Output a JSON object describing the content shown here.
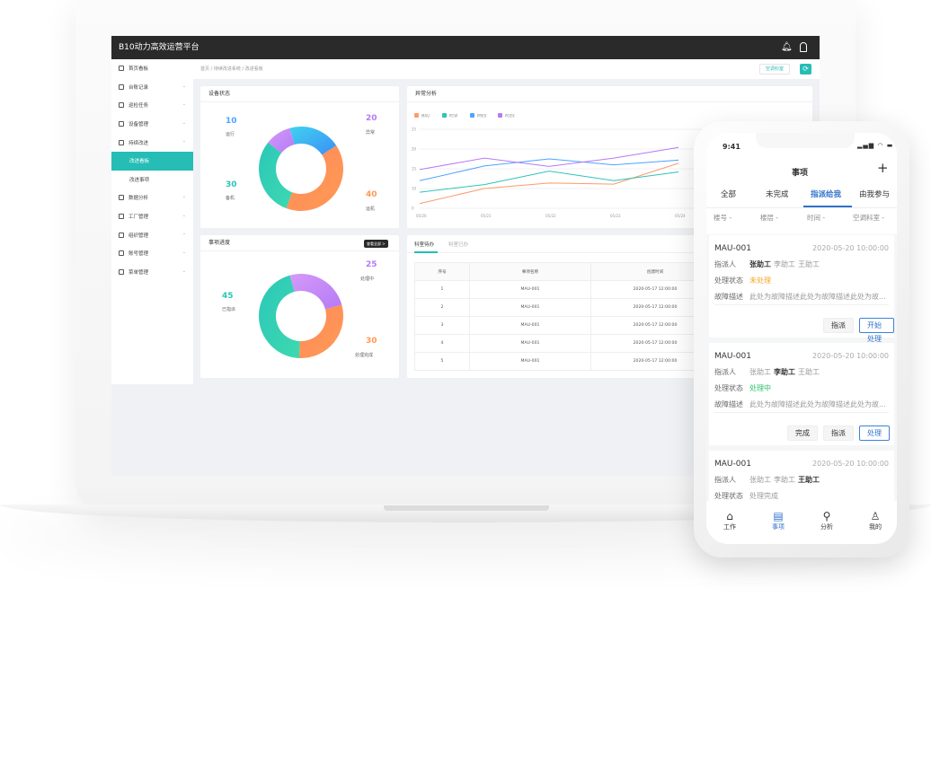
{
  "app": {
    "title": "B10动力高效运营平台",
    "icons": [
      "bell-icon",
      "user-icon"
    ]
  },
  "sidebar": {
    "items": [
      {
        "label": "首页看板",
        "icon": "home-icon",
        "chev": false
      },
      {
        "label": "台账记录",
        "icon": "ledger-icon",
        "chev": true
      },
      {
        "label": "巡检任务",
        "icon": "inspect-icon",
        "chev": true
      },
      {
        "label": "设备管理",
        "icon": "device-icon",
        "chev": true
      },
      {
        "label": "持续改进",
        "icon": "improve-icon",
        "chev": true
      },
      {
        "label": "改进看板",
        "sub": true,
        "active": true
      },
      {
        "label": "改进事项",
        "sub": true
      },
      {
        "label": "数据分析",
        "icon": "chart-icon",
        "chev": true
      },
      {
        "label": "工厂管理",
        "icon": "factory-icon",
        "chev": true
      },
      {
        "label": "组织管理",
        "icon": "org-icon",
        "chev": true
      },
      {
        "label": "账号管理",
        "icon": "account-icon",
        "chev": true
      },
      {
        "label": "菜单管理",
        "icon": "menu-icon",
        "chev": true
      }
    ]
  },
  "breadcrumb": "首页 / 持续改进系统 / 改进看板",
  "header": {
    "dept_button": "空调科室",
    "refresh_icon": "refresh-icon"
  },
  "device_status": {
    "title": "设备状态",
    "segments": [
      {
        "label": "异常",
        "value": 20,
        "color": "#3b8ff5",
        "color2": "#3fd2f0"
      },
      {
        "label": "运行",
        "value": 40,
        "color": "#ff9a55",
        "color2": "#ff8a5a"
      },
      {
        "label": "备机",
        "value": 30,
        "color": "#3dd9b0",
        "color2": "#2cc7b8"
      },
      {
        "label": "运行",
        "value": 10,
        "color": "#b57af5",
        "color2": "#d49af8"
      }
    ],
    "labels": {
      "run_value": "10",
      "run_label": "运行",
      "abn_value": "20",
      "abn_label": "异常",
      "standby_value": "30",
      "standby_label": "备机",
      "on_value": "40",
      "on_label": "运机"
    }
  },
  "progress": {
    "title": "事项进度",
    "view_all": "查看全部 >",
    "segments": [
      {
        "value": 25,
        "color": "#b57af5",
        "color2": "#d49af8"
      },
      {
        "value": 30,
        "color": "#ff9a55",
        "color2": "#ff8a5a"
      },
      {
        "value": 45,
        "color": "#3dd9b0",
        "color2": "#2cc7b8"
      }
    ],
    "labels": {
      "doing_value": "25",
      "doing_label": "处理中",
      "done_value": "30",
      "done_label": "处理完成",
      "assigned_value": "45",
      "assigned_label": "已指派"
    }
  },
  "chart_data": {
    "type": "line",
    "title": "异常分析",
    "x": [
      "05/20",
      "05/21",
      "05/22",
      "05/23",
      "05/24"
    ],
    "yticks": [
      0,
      10,
      15,
      20,
      25
    ],
    "ylim": [
      0,
      25
    ],
    "grid": true,
    "legend": "top-left",
    "series": [
      {
        "name": "MAU",
        "color": "#ff9a6a",
        "values": [
          2.4,
          10,
          11.4,
          11.1,
          16.4
        ]
      },
      {
        "name": "PCW",
        "color": "#2ec4b6",
        "values": [
          8.1,
          11,
          14.4,
          12,
          14.2
        ]
      },
      {
        "name": "PREX",
        "color": "#4da3ff",
        "values": [
          12,
          15.7,
          17.5,
          16,
          17.2
        ]
      },
      {
        "name": "PGEX",
        "color": "#b57af5",
        "values": [
          14.8,
          17.7,
          15.6,
          17.7,
          20.4
        ]
      }
    ]
  },
  "todo": {
    "tabs": [
      "科室待办",
      "科室已办"
    ],
    "columns": [
      "序号",
      "事项名称",
      "创建时间"
    ],
    "rows": [
      [
        "1",
        "MAU-001",
        "2020-05-17 12:00:00"
      ],
      [
        "2",
        "MAU-001",
        "2020-05-17 12:00:00"
      ],
      [
        "3",
        "MAU-001",
        "2020-05-17 12:00:00"
      ],
      [
        "4",
        "MAU-001",
        "2020-05-17 12:00:00"
      ],
      [
        "5",
        "MAU-001",
        "2020-05-17 12:00:00"
      ]
    ]
  },
  "phone": {
    "time": "9:41",
    "title": "事项",
    "add": "+",
    "tabs": [
      "全部",
      "未完成",
      "指派给我",
      "由我参与"
    ],
    "active_tab": 2,
    "filters": [
      "楼号 -",
      "楼层 -",
      "时间 -",
      "空调科室 -"
    ],
    "cards": [
      {
        "id": "MAU-001",
        "time": "2020-05-20 10:00:00",
        "assign_label": "指派人",
        "people": [
          "张助工",
          "李助工",
          "王助工"
        ],
        "bold": 0,
        "status_label": "处理状态",
        "status": "未处理",
        "status_color": "#f5a623",
        "desc_label": "故障描述",
        "desc": "此处为故障描述此处为故障描述此处为故...",
        "buttons": [
          "指派",
          "开始处理"
        ]
      },
      {
        "id": "MAU-001",
        "time": "2020-05-20 10:00:00",
        "assign_label": "指派人",
        "people": [
          "张助工",
          "李助工",
          "王助工"
        ],
        "bold": 1,
        "status_label": "处理状态",
        "status": "处理中",
        "status_color": "#2cbf6a",
        "desc_label": "故障描述",
        "desc": "此处为故障描述此处为故障描述此处为故...",
        "buttons": [
          "完成",
          "指派",
          "处理"
        ]
      },
      {
        "id": "MAU-001",
        "time": "2020-05-20 10:00:00",
        "assign_label": "指派人",
        "people": [
          "张助工",
          "李助工",
          "王助工"
        ],
        "bold": 2,
        "status_label": "处理状态",
        "status": "处理完成",
        "status_color": "#999999"
      }
    ],
    "nav": [
      {
        "label": "工作",
        "icon": "home-icon"
      },
      {
        "label": "事项",
        "icon": "clipboard-icon",
        "active": true
      },
      {
        "label": "分析",
        "icon": "search-icon"
      },
      {
        "label": "我的",
        "icon": "user-icon"
      }
    ]
  }
}
